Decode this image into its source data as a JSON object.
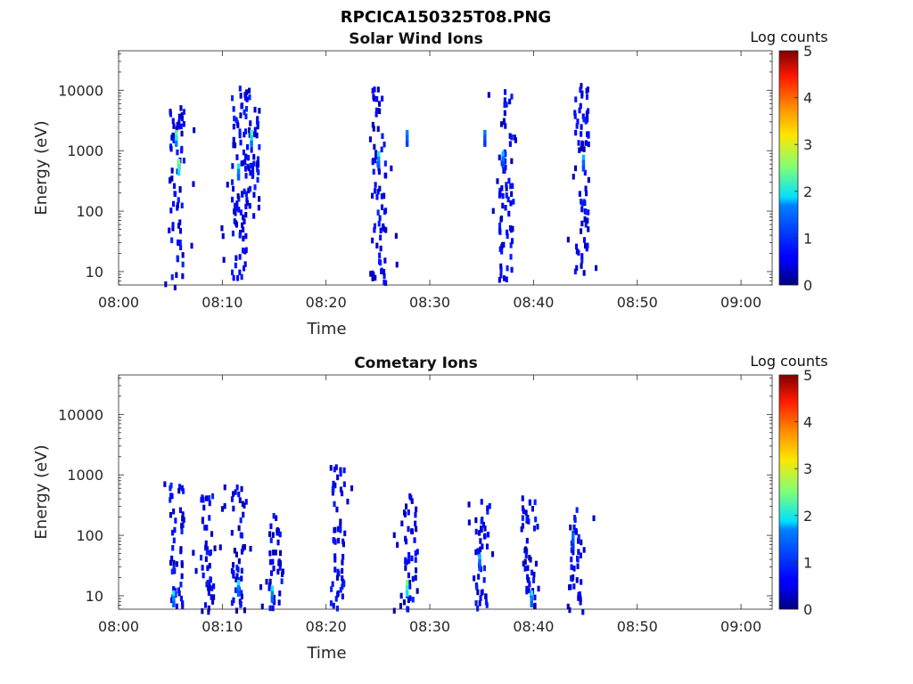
{
  "figure": {
    "title": "RPCICA150325T08.PNG"
  },
  "colorscale": {
    "label": "Log counts",
    "min": 0,
    "max": 5,
    "ticks": [
      "0",
      "1",
      "2",
      "3",
      "4",
      "5"
    ],
    "colormap": "jet"
  },
  "chart_data": [
    {
      "type": "heatmap",
      "title": "Solar Wind Ions",
      "xlabel": "Time",
      "ylabel": "Energy (eV)",
      "x_range": [
        "08:00",
        "09:03"
      ],
      "x_ticks": [
        "08:00",
        "08:10",
        "08:20",
        "08:30",
        "08:40",
        "08:50",
        "09:00"
      ],
      "y_scale": "log",
      "y_range": [
        6,
        45000
      ],
      "y_ticks": [
        "10",
        "100",
        "1000",
        "10000"
      ],
      "colorbar_label": "Log counts",
      "clusters": [
        {
          "t": "08:05:30",
          "e_min": 6,
          "e_max": 6000,
          "peak_e": 600,
          "peak_log_counts": 2.5
        },
        {
          "t": "08:11:30",
          "e_min": 8,
          "e_max": 13000,
          "peak_e": 500,
          "peak_log_counts": 2.0
        },
        {
          "t": "08:12:45",
          "e_min": 60,
          "e_max": 12000,
          "peak_e": 2000,
          "peak_log_counts": 2.2
        },
        {
          "t": "08:25:00",
          "e_min": 6,
          "e_max": 12000,
          "peak_e": 800,
          "peak_log_counts": 2.0
        },
        {
          "t": "08:37:15",
          "e_min": 8,
          "e_max": 11000,
          "peak_e": 800,
          "peak_log_counts": 1.8
        },
        {
          "t": "08:44:30",
          "e_min": 10,
          "e_max": 14000,
          "peak_e": 700,
          "peak_log_counts": 1.8
        }
      ],
      "highlights": [
        {
          "t": "08:05:30",
          "e": 1800,
          "log_counts": 2.3
        },
        {
          "t": "08:05:45",
          "e": 600,
          "log_counts": 2.5
        },
        {
          "t": "08:11:30",
          "e": 500,
          "log_counts": 2.0
        },
        {
          "t": "08:12:45",
          "e": 1800,
          "log_counts": 2.2
        },
        {
          "t": "08:25:00",
          "e": 800,
          "log_counts": 2.0
        },
        {
          "t": "08:27:45",
          "e": 1800,
          "log_counts": 1.7
        },
        {
          "t": "08:35:15",
          "e": 1800,
          "log_counts": 1.6
        },
        {
          "t": "08:37:00",
          "e": 800,
          "log_counts": 1.8
        },
        {
          "t": "08:44:45",
          "e": 700,
          "log_counts": 1.8
        }
      ]
    },
    {
      "type": "heatmap",
      "title": "Cometary Ions",
      "xlabel": "Time",
      "ylabel": "Energy (eV)",
      "x_range": [
        "08:00",
        "09:03"
      ],
      "x_ticks": [
        "08:00",
        "08:10",
        "08:20",
        "08:30",
        "08:40",
        "08:50",
        "09:00"
      ],
      "y_scale": "log",
      "y_range": [
        6,
        45000
      ],
      "y_ticks": [
        "10",
        "100",
        "1000",
        "10000"
      ],
      "colorbar_label": "Log counts",
      "clusters": [
        {
          "t": "08:05:30",
          "e_min": 6,
          "e_max": 800,
          "peak_e": 10,
          "peak_log_counts": 2.0
        },
        {
          "t": "08:08:30",
          "e_min": 6,
          "e_max": 500,
          "peak_e": 20,
          "peak_log_counts": 1.5
        },
        {
          "t": "08:11:30",
          "e_min": 6,
          "e_max": 700,
          "peak_e": 15,
          "peak_log_counts": 2.0
        },
        {
          "t": "08:15:00",
          "e_min": 6,
          "e_max": 300,
          "peak_e": 15,
          "peak_log_counts": 2.0
        },
        {
          "t": "08:21:00",
          "e_min": 6,
          "e_max": 1500,
          "peak_e": 15,
          "peak_log_counts": 1.5
        },
        {
          "t": "08:28:00",
          "e_min": 6,
          "e_max": 500,
          "peak_e": 15,
          "peak_log_counts": 2.5
        },
        {
          "t": "08:35:00",
          "e_min": 6,
          "e_max": 400,
          "peak_e": 10,
          "peak_log_counts": 2.0
        },
        {
          "t": "08:39:30",
          "e_min": 6,
          "e_max": 500,
          "peak_e": 10,
          "peak_log_counts": 2.0
        },
        {
          "t": "08:44:00",
          "e_min": 6,
          "e_max": 300,
          "peak_e": 10,
          "peak_log_counts": 1.5
        }
      ],
      "highlights": [
        {
          "t": "08:05:15",
          "e": 10,
          "log_counts": 2.0
        },
        {
          "t": "08:11:30",
          "e": 15,
          "log_counts": 2.0
        },
        {
          "t": "08:14:45",
          "e": 12,
          "log_counts": 2.0
        },
        {
          "t": "08:27:45",
          "e": 15,
          "log_counts": 2.5
        },
        {
          "t": "08:34:45",
          "e": 40,
          "log_counts": 1.8
        },
        {
          "t": "08:39:45",
          "e": 10,
          "log_counts": 2.0
        },
        {
          "t": "08:43:45",
          "e": 90,
          "log_counts": 1.6
        }
      ]
    }
  ]
}
